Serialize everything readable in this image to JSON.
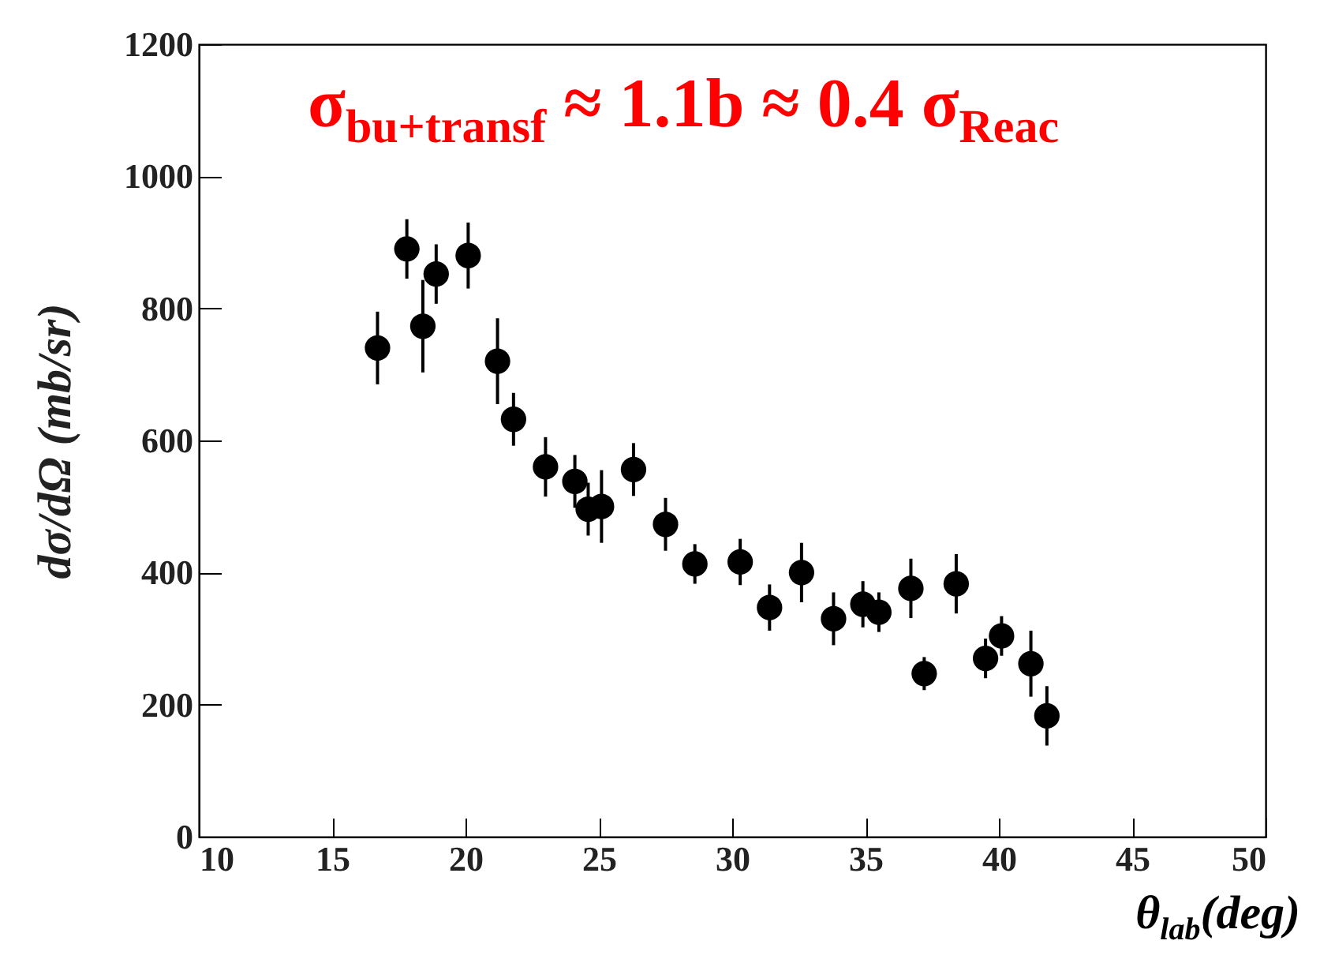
{
  "chart_data": {
    "type": "scatter",
    "xlabel": "θ$_{lab}$(deg)",
    "ylabel": "dσ/dΩ (mb/sr)",
    "annotations": [
      "σ$_{bu+transf}$ ≈ 1.1b ≈ 0.4 σ$_{Reac}$"
    ],
    "xlim": [
      10,
      50
    ],
    "xticks": [
      10,
      15,
      20,
      25,
      30,
      35,
      40,
      45,
      50
    ],
    "ylim": [
      0,
      1200
    ],
    "yticks": [
      0,
      200,
      400,
      600,
      800,
      1000,
      1200
    ],
    "grid": false,
    "marker": "circle",
    "x": [
      16.7,
      17.8,
      18.4,
      18.9,
      20.1,
      21.2,
      21.8,
      23.0,
      24.1,
      24.6,
      25.1,
      26.3,
      27.5,
      28.6,
      30.3,
      31.4,
      32.6,
      33.8,
      34.9,
      35.5,
      36.7,
      37.2,
      38.4,
      39.5,
      40.1,
      41.2,
      41.8
    ],
    "series": [
      {
        "color": "#000000",
        "values": [
          740,
          890,
          773,
          852,
          880,
          720,
          632,
          560,
          538,
          496,
          500,
          556,
          473,
          413,
          416,
          347,
          400,
          330,
          352,
          340,
          376,
          247,
          383,
          270,
          304,
          262,
          183
        ],
        "errors": [
          55,
          45,
          70,
          45,
          50,
          65,
          40,
          45,
          40,
          40,
          55,
          40,
          40,
          30,
          35,
          35,
          45,
          40,
          35,
          30,
          45,
          25,
          45,
          30,
          30,
          50,
          45
        ]
      }
    ]
  }
}
